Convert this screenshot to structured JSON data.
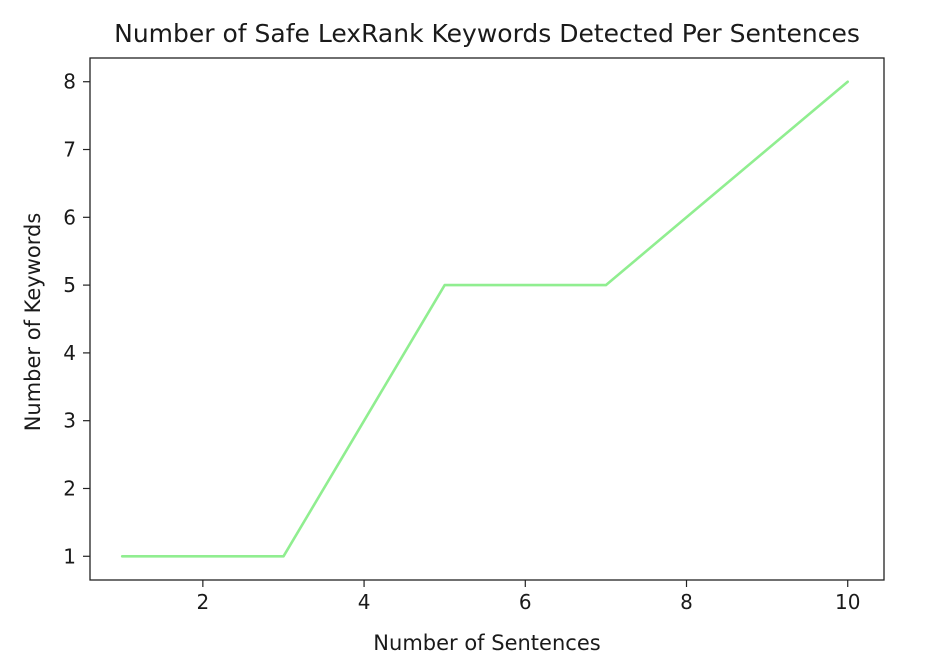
{
  "chart_data": {
    "type": "line",
    "title": "Number of Safe LexRank Keywords Detected Per Sentences",
    "xlabel": "Number of Sentences",
    "ylabel": "Number of Keywords",
    "xlim": [
      0.6,
      10.45
    ],
    "ylim": [
      0.65,
      8.35
    ],
    "x_ticks": [
      2,
      4,
      6,
      8,
      10
    ],
    "y_ticks": [
      1,
      2,
      3,
      4,
      5,
      6,
      7,
      8
    ],
    "grid": false,
    "legend": "none",
    "series": [
      {
        "color": "#90ee90",
        "x": [
          1,
          2,
          3,
          4,
          5,
          6,
          7,
          8,
          9,
          10
        ],
        "y": [
          1,
          1,
          1,
          3,
          5,
          5,
          5,
          6,
          7,
          8
        ]
      }
    ]
  }
}
